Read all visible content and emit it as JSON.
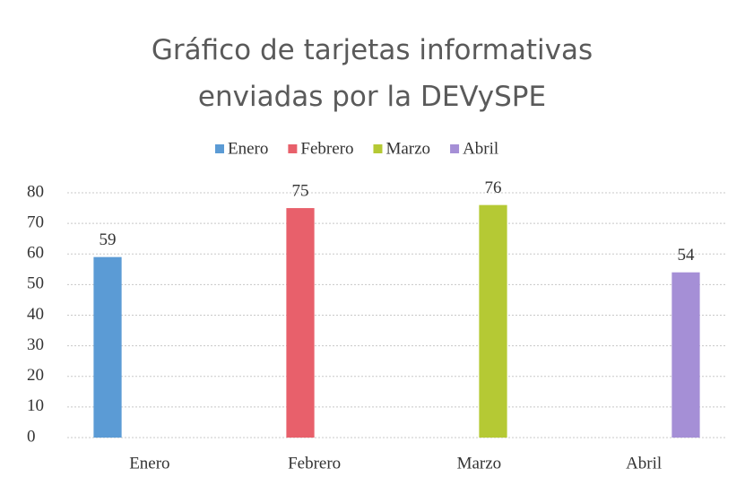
{
  "chart_data": {
    "type": "bar",
    "title": "Gráfico de tarjetas informativas enviadas por la DEVySPE",
    "categories": [
      "Enero",
      "Febrero",
      "Marzo",
      "Abril"
    ],
    "series": [
      {
        "name": "Enero",
        "color": "#5b9bd5",
        "values": [
          59,
          null,
          null,
          null
        ]
      },
      {
        "name": "Febrero",
        "color": "#e8606b",
        "values": [
          null,
          75,
          null,
          null
        ]
      },
      {
        "name": "Marzo",
        "color": "#b5c934",
        "values": [
          null,
          null,
          76,
          null
        ]
      },
      {
        "name": "Abril",
        "color": "#a58fd6",
        "values": [
          null,
          null,
          null,
          54
        ]
      }
    ],
    "ylim": [
      0,
      80
    ],
    "yticks": [
      0,
      10,
      20,
      30,
      40,
      50,
      60,
      70,
      80
    ],
    "grid": true,
    "legend": "top",
    "data_labels": true
  }
}
